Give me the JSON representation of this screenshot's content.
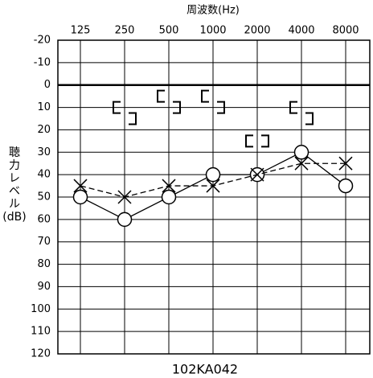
{
  "chart_data": {
    "type": "audiogram",
    "title": "周波数(Hz)",
    "ylabel_lines": [
      "聴",
      "力",
      "レ",
      "ベ",
      "ル",
      "(dB)"
    ],
    "footer": "102KA042",
    "categories": [
      "125",
      "250",
      "500",
      "1000",
      "2000",
      "4000",
      "8000"
    ],
    "ylim": [
      -20,
      120
    ],
    "inverted": true,
    "grid": true,
    "thick_line": 0,
    "yticks": [
      -20,
      -10,
      0,
      10,
      20,
      30,
      40,
      50,
      60,
      70,
      80,
      90,
      100,
      110,
      120
    ],
    "series": [
      {
        "marker": "o",
        "line": "solid",
        "color": "#000000",
        "values": [
          50,
          60,
          50,
          40,
          40,
          30,
          45
        ]
      },
      {
        "marker": "x",
        "line": "dashed",
        "color": "#000000",
        "values": [
          45,
          50,
          45,
          45,
          40,
          35,
          35
        ]
      },
      {
        "marker": "[",
        "line": "none",
        "color": "#000000",
        "values": [
          null,
          10,
          5,
          5,
          25,
          10,
          null
        ]
      },
      {
        "marker": "]",
        "line": "none",
        "color": "#000000",
        "values": [
          null,
          15,
          10,
          10,
          25,
          15,
          null
        ]
      }
    ]
  }
}
